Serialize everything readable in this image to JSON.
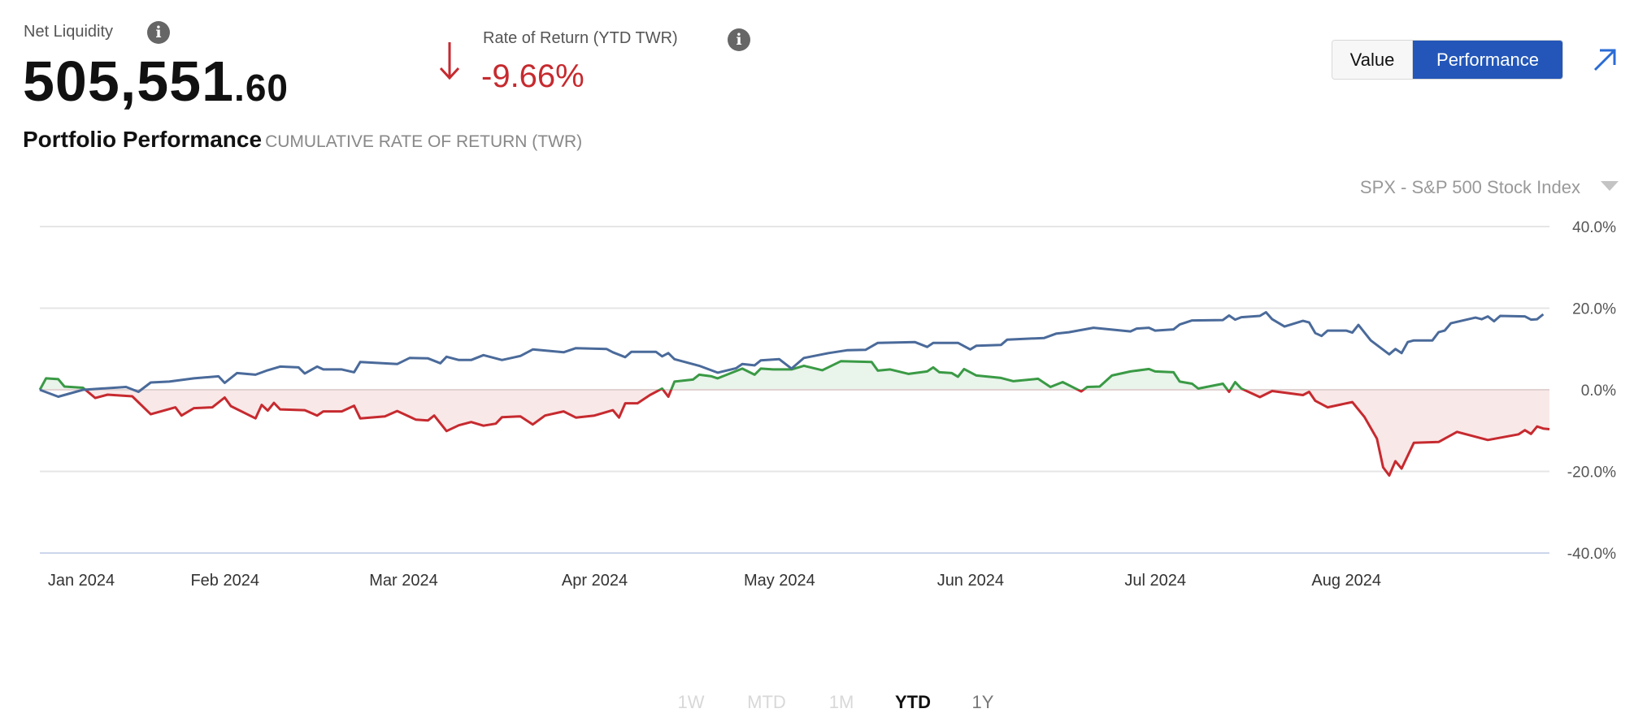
{
  "header": {
    "net_liquidity_label": "Net Liquidity",
    "net_liquidity_whole": "505,551",
    "net_liquidity_cents": ".60",
    "rate_label": "Rate of Return (YTD TWR)",
    "rate_value": "-9.66%",
    "info_glyph": "i",
    "direction_icon": "arrow-down-icon"
  },
  "section": {
    "title": "Portfolio Performance",
    "subtitle": "CUMULATIVE RATE OF RETURN (TWR)"
  },
  "toggle": {
    "value_label": "Value",
    "performance_label": "Performance",
    "active": "Performance"
  },
  "benchmark_select": {
    "selected": "SPX - S&P 500 Stock Index"
  },
  "ranges": [
    {
      "label": "1W",
      "state": "disabled"
    },
    {
      "label": "MTD",
      "state": "disabled"
    },
    {
      "label": "1M",
      "state": "disabled"
    },
    {
      "label": "YTD",
      "state": "active"
    },
    {
      "label": "1Y",
      "state": "enabled"
    }
  ],
  "colors": {
    "accent": "#2356b8",
    "negative": "#c62a2f",
    "positive": "#3a9a45",
    "benchmark": "#4a6a9a"
  },
  "chart_data": {
    "type": "line",
    "ylim": [
      -40,
      40
    ],
    "xlim": [
      "2023-12-29",
      "2024-08-30"
    ],
    "yticks": [
      "40.0%",
      "20.0%",
      "0.0%",
      "-20.0%",
      "-40.0%"
    ],
    "ytick_values": [
      40,
      20,
      0,
      -20,
      -40
    ],
    "xticks": [
      "Jan 2024",
      "Feb 2024",
      "Mar 2024",
      "Apr 2024",
      "May 2024",
      "Jun 2024",
      "Jul 2024",
      "Aug 2024"
    ],
    "xtick_dates": [
      "2024-01-01",
      "2024-02-01",
      "2024-03-01",
      "2024-04-01",
      "2024-05-01",
      "2024-06-01",
      "2024-07-01",
      "2024-08-01"
    ],
    "grid": true,
    "series": [
      {
        "key": "portfolio",
        "fill_to_zero": true,
        "points": [
          [
            "2023-12-29",
            0
          ],
          [
            "2023-12-30",
            2.8
          ],
          [
            "2024-01-01",
            2.6
          ],
          [
            "2024-01-02",
            0.8
          ],
          [
            "2024-01-05",
            0.5
          ],
          [
            "2024-01-07",
            -2.0
          ],
          [
            "2024-01-09",
            -1.2
          ],
          [
            "2024-01-13",
            -1.6
          ],
          [
            "2024-01-16",
            -6.0
          ],
          [
            "2024-01-20",
            -4.3
          ],
          [
            "2024-01-21",
            -6.3
          ],
          [
            "2024-01-23",
            -4.5
          ],
          [
            "2024-01-26",
            -4.3
          ],
          [
            "2024-01-28",
            -1.9
          ],
          [
            "2024-01-29",
            -4.0
          ],
          [
            "2024-02-02",
            -7.0
          ],
          [
            "2024-02-03",
            -3.7
          ],
          [
            "2024-02-04",
            -5.1
          ],
          [
            "2024-02-05",
            -3.2
          ],
          [
            "2024-02-06",
            -4.8
          ],
          [
            "2024-02-10",
            -5.0
          ],
          [
            "2024-02-12",
            -6.3
          ],
          [
            "2024-02-13",
            -5.3
          ],
          [
            "2024-02-16",
            -5.3
          ],
          [
            "2024-02-18",
            -3.9
          ],
          [
            "2024-02-19",
            -7.0
          ],
          [
            "2024-02-23",
            -6.5
          ],
          [
            "2024-02-25",
            -5.2
          ],
          [
            "2024-02-28",
            -7.3
          ],
          [
            "2024-03-01",
            -7.5
          ],
          [
            "2024-03-02",
            -6.3
          ],
          [
            "2024-03-04",
            -10.1
          ],
          [
            "2024-03-06",
            -8.7
          ],
          [
            "2024-03-08",
            -7.9
          ],
          [
            "2024-03-10",
            -8.8
          ],
          [
            "2024-03-12",
            -8.3
          ],
          [
            "2024-03-13",
            -6.7
          ],
          [
            "2024-03-16",
            -6.5
          ],
          [
            "2024-03-18",
            -8.5
          ],
          [
            "2024-03-20",
            -6.3
          ],
          [
            "2024-03-23",
            -5.3
          ],
          [
            "2024-03-25",
            -6.8
          ],
          [
            "2024-03-28",
            -6.3
          ],
          [
            "2024-03-31",
            -5.0
          ],
          [
            "2024-04-01",
            -6.8
          ],
          [
            "2024-04-02",
            -3.3
          ],
          [
            "2024-04-04",
            -3.3
          ],
          [
            "2024-04-06",
            -1.3
          ],
          [
            "2024-04-08",
            0.3
          ],
          [
            "2024-04-09",
            -1.7
          ],
          [
            "2024-04-10",
            2.0
          ],
          [
            "2024-04-13",
            2.5
          ],
          [
            "2024-04-14",
            3.7
          ],
          [
            "2024-04-16",
            3.3
          ],
          [
            "2024-04-17",
            2.8
          ],
          [
            "2024-04-19",
            4.0
          ],
          [
            "2024-04-21",
            5.2
          ],
          [
            "2024-04-23",
            3.7
          ],
          [
            "2024-04-24",
            5.2
          ],
          [
            "2024-04-26",
            5.0
          ],
          [
            "2024-04-29",
            5.0
          ],
          [
            "2024-05-01",
            5.9
          ],
          [
            "2024-05-04",
            4.8
          ],
          [
            "2024-05-07",
            7.0
          ],
          [
            "2024-05-12",
            6.8
          ],
          [
            "2024-05-13",
            4.7
          ],
          [
            "2024-05-15",
            5.0
          ],
          [
            "2024-05-18",
            3.9
          ],
          [
            "2024-05-21",
            4.5
          ],
          [
            "2024-05-22",
            5.5
          ],
          [
            "2024-05-23",
            4.3
          ],
          [
            "2024-05-25",
            4.1
          ],
          [
            "2024-05-26",
            3.2
          ],
          [
            "2024-05-27",
            5.1
          ],
          [
            "2024-05-29",
            3.5
          ],
          [
            "2024-06-02",
            2.9
          ],
          [
            "2024-06-04",
            2.1
          ],
          [
            "2024-06-08",
            2.7
          ],
          [
            "2024-06-10",
            0.7
          ],
          [
            "2024-06-12",
            1.9
          ],
          [
            "2024-06-15",
            -0.4
          ],
          [
            "2024-06-16",
            0.7
          ],
          [
            "2024-06-18",
            0.8
          ],
          [
            "2024-06-20",
            3.5
          ],
          [
            "2024-06-23",
            4.5
          ],
          [
            "2024-06-26",
            5.1
          ],
          [
            "2024-06-27",
            4.5
          ],
          [
            "2024-06-30",
            4.3
          ],
          [
            "2024-07-01",
            2.0
          ],
          [
            "2024-07-03",
            1.5
          ],
          [
            "2024-07-04",
            0.3
          ],
          [
            "2024-07-06",
            0.9
          ],
          [
            "2024-07-08",
            1.5
          ],
          [
            "2024-07-09",
            -0.5
          ],
          [
            "2024-07-10",
            1.9
          ],
          [
            "2024-07-11",
            0.3
          ],
          [
            "2024-07-14",
            -1.8
          ],
          [
            "2024-07-16",
            -0.3
          ],
          [
            "2024-07-21",
            -1.3
          ],
          [
            "2024-07-22",
            -0.5
          ],
          [
            "2024-07-23",
            -2.7
          ],
          [
            "2024-07-25",
            -4.3
          ],
          [
            "2024-07-29",
            -3.0
          ],
          [
            "2024-07-31",
            -6.7
          ],
          [
            "2024-08-02",
            -12.0
          ],
          [
            "2024-08-03",
            -19.0
          ],
          [
            "2024-08-04",
            -21.0
          ],
          [
            "2024-08-05",
            -17.5
          ],
          [
            "2024-08-06",
            -19.3
          ],
          [
            "2024-08-08",
            -13.0
          ],
          [
            "2024-08-12",
            -12.8
          ],
          [
            "2024-08-15",
            -10.3
          ],
          [
            "2024-08-20",
            -12.3
          ],
          [
            "2024-08-25",
            -10.9
          ],
          [
            "2024-08-26",
            -9.9
          ],
          [
            "2024-08-27",
            -10.8
          ],
          [
            "2024-08-28",
            -9.0
          ],
          [
            "2024-08-29",
            -9.5
          ],
          [
            "2024-08-30",
            -9.66
          ]
        ]
      },
      {
        "key": "benchmark",
        "points": [
          [
            "2023-12-29",
            0
          ],
          [
            "2024-01-01",
            -1.7
          ],
          [
            "2024-01-05",
            0
          ],
          [
            "2024-01-12",
            0.7
          ],
          [
            "2024-01-14",
            -0.5
          ],
          [
            "2024-01-16",
            1.8
          ],
          [
            "2024-01-19",
            2.0
          ],
          [
            "2024-01-23",
            2.8
          ],
          [
            "2024-01-27",
            3.3
          ],
          [
            "2024-01-28",
            1.7
          ],
          [
            "2024-01-30",
            4.1
          ],
          [
            "2024-02-02",
            3.7
          ],
          [
            "2024-02-04",
            4.8
          ],
          [
            "2024-02-06",
            5.7
          ],
          [
            "2024-02-09",
            5.5
          ],
          [
            "2024-02-10",
            4.0
          ],
          [
            "2024-02-12",
            5.7
          ],
          [
            "2024-02-13",
            5.0
          ],
          [
            "2024-02-16",
            5.0
          ],
          [
            "2024-02-18",
            4.3
          ],
          [
            "2024-02-19",
            6.8
          ],
          [
            "2024-02-25",
            6.3
          ],
          [
            "2024-02-27",
            7.8
          ],
          [
            "2024-03-01",
            7.7
          ],
          [
            "2024-03-03",
            6.5
          ],
          [
            "2024-03-04",
            8.1
          ],
          [
            "2024-03-06",
            7.3
          ],
          [
            "2024-03-08",
            7.3
          ],
          [
            "2024-03-10",
            8.5
          ],
          [
            "2024-03-13",
            7.3
          ],
          [
            "2024-03-16",
            8.3
          ],
          [
            "2024-03-18",
            9.9
          ],
          [
            "2024-03-23",
            9.2
          ],
          [
            "2024-03-25",
            10.2
          ],
          [
            "2024-03-30",
            10.0
          ],
          [
            "2024-03-31",
            9.2
          ],
          [
            "2024-04-02",
            8.0
          ],
          [
            "2024-04-03",
            9.3
          ],
          [
            "2024-04-07",
            9.3
          ],
          [
            "2024-04-08",
            8.2
          ],
          [
            "2024-04-09",
            9.0
          ],
          [
            "2024-04-10",
            7.5
          ],
          [
            "2024-04-14",
            5.9
          ],
          [
            "2024-04-17",
            4.2
          ],
          [
            "2024-04-20",
            5.3
          ],
          [
            "2024-04-21",
            6.3
          ],
          [
            "2024-04-23",
            6.0
          ],
          [
            "2024-04-24",
            7.2
          ],
          [
            "2024-04-27",
            7.5
          ],
          [
            "2024-04-29",
            5.2
          ],
          [
            "2024-05-01",
            7.8
          ],
          [
            "2024-05-05",
            9.0
          ],
          [
            "2024-05-08",
            9.7
          ],
          [
            "2024-05-11",
            9.8
          ],
          [
            "2024-05-13",
            11.5
          ],
          [
            "2024-05-19",
            11.7
          ],
          [
            "2024-05-21",
            10.5
          ],
          [
            "2024-05-22",
            11.5
          ],
          [
            "2024-05-26",
            11.5
          ],
          [
            "2024-05-28",
            9.9
          ],
          [
            "2024-05-29",
            10.8
          ],
          [
            "2024-06-02",
            11.0
          ],
          [
            "2024-06-03",
            12.3
          ],
          [
            "2024-06-09",
            12.7
          ],
          [
            "2024-06-11",
            13.8
          ],
          [
            "2024-06-13",
            14.1
          ],
          [
            "2024-06-17",
            15.2
          ],
          [
            "2024-06-23",
            14.3
          ],
          [
            "2024-06-24",
            15.0
          ],
          [
            "2024-06-26",
            15.2
          ],
          [
            "2024-06-27",
            14.5
          ],
          [
            "2024-06-30",
            14.8
          ],
          [
            "2024-07-01",
            16.0
          ],
          [
            "2024-07-03",
            17.0
          ],
          [
            "2024-07-08",
            17.1
          ],
          [
            "2024-07-09",
            18.2
          ],
          [
            "2024-07-10",
            17.2
          ],
          [
            "2024-07-11",
            17.8
          ],
          [
            "2024-07-14",
            18.1
          ],
          [
            "2024-07-15",
            19.0
          ],
          [
            "2024-07-16",
            17.3
          ],
          [
            "2024-07-18",
            15.5
          ],
          [
            "2024-07-21",
            16.9
          ],
          [
            "2024-07-22",
            16.5
          ],
          [
            "2024-07-23",
            13.9
          ],
          [
            "2024-07-24",
            13.2
          ],
          [
            "2024-07-25",
            14.5
          ],
          [
            "2024-07-28",
            14.5
          ],
          [
            "2024-07-29",
            14.0
          ],
          [
            "2024-07-30",
            15.9
          ],
          [
            "2024-08-01",
            12.1
          ],
          [
            "2024-08-04",
            8.7
          ],
          [
            "2024-08-05",
            10.0
          ],
          [
            "2024-08-06",
            9.0
          ],
          [
            "2024-08-07",
            11.7
          ],
          [
            "2024-08-08",
            12.1
          ],
          [
            "2024-08-11",
            12.1
          ],
          [
            "2024-08-12",
            14.1
          ],
          [
            "2024-08-13",
            14.5
          ],
          [
            "2024-08-14",
            16.3
          ],
          [
            "2024-08-18",
            17.7
          ],
          [
            "2024-08-19",
            17.3
          ],
          [
            "2024-08-20",
            18.0
          ],
          [
            "2024-08-21",
            16.8
          ],
          [
            "2024-08-22",
            18.1
          ],
          [
            "2024-08-26",
            18.0
          ],
          [
            "2024-08-27",
            17.2
          ],
          [
            "2024-08-28",
            17.3
          ],
          [
            "2024-08-29",
            18.5
          ]
        ]
      }
    ]
  }
}
